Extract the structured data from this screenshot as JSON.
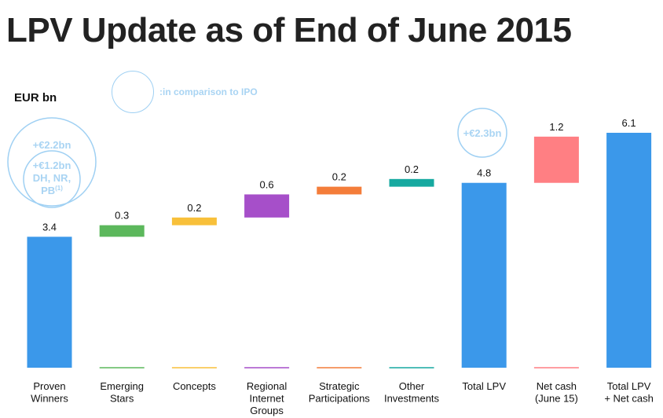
{
  "page": {
    "title": "LPV Update as of End of June 2015",
    "unit": "EUR bn",
    "legend_note": ":in comparison to IPO"
  },
  "chart_data": {
    "type": "bar",
    "subtype": "waterfall",
    "title": "LPV Update as of End of June 2015",
    "ylabel": "EUR bn",
    "xlabel": "",
    "ylim": [
      0,
      6.1
    ],
    "grid": false,
    "categories": [
      [
        "Proven",
        "Winners"
      ],
      [
        "Emerging",
        "Stars"
      ],
      [
        "Concepts"
      ],
      [
        "Regional",
        "Internet",
        "Groups"
      ],
      [
        "Strategic",
        "Participations"
      ],
      [
        "Other",
        "Investments"
      ],
      [
        "Total LPV"
      ],
      [
        "Net cash",
        "(June 15)"
      ],
      [
        "Total LPV",
        "+ Net cash"
      ]
    ],
    "values": [
      3.4,
      0.3,
      0.2,
      0.6,
      0.2,
      0.2,
      4.8,
      1.2,
      6.1
    ],
    "labels": [
      "3.4",
      "0.3",
      "0.2",
      "0.6",
      "0.2",
      "0.2",
      "4.8",
      "1.2",
      "6.1"
    ],
    "bases": [
      0,
      3.4,
      3.7,
      3.9,
      4.5,
      4.7,
      0,
      4.8,
      0
    ],
    "kinds": [
      "total",
      "step",
      "step",
      "step",
      "step",
      "step",
      "total",
      "step",
      "total"
    ],
    "colors": [
      "#3b98ea",
      "#5cb85c",
      "#f8c03a",
      "#a64fc9",
      "#f47d3a",
      "#17a9a0",
      "#3b98ea",
      "#ff7f83",
      "#3b98ea"
    ],
    "annotations": [
      {
        "text": [
          "+€2.2bn"
        ],
        "category_index": 0,
        "style": "outer-circle"
      },
      {
        "text": [
          "+€1.2bn",
          "DH, NR,",
          "PB"
        ],
        "superscript": "(1)",
        "category_index": 0,
        "style": "inner-circle"
      },
      {
        "text": [
          "+€2.3bn"
        ],
        "category_index": 6,
        "style": "circle"
      }
    ],
    "annotation_color": "#9fd0f3"
  }
}
